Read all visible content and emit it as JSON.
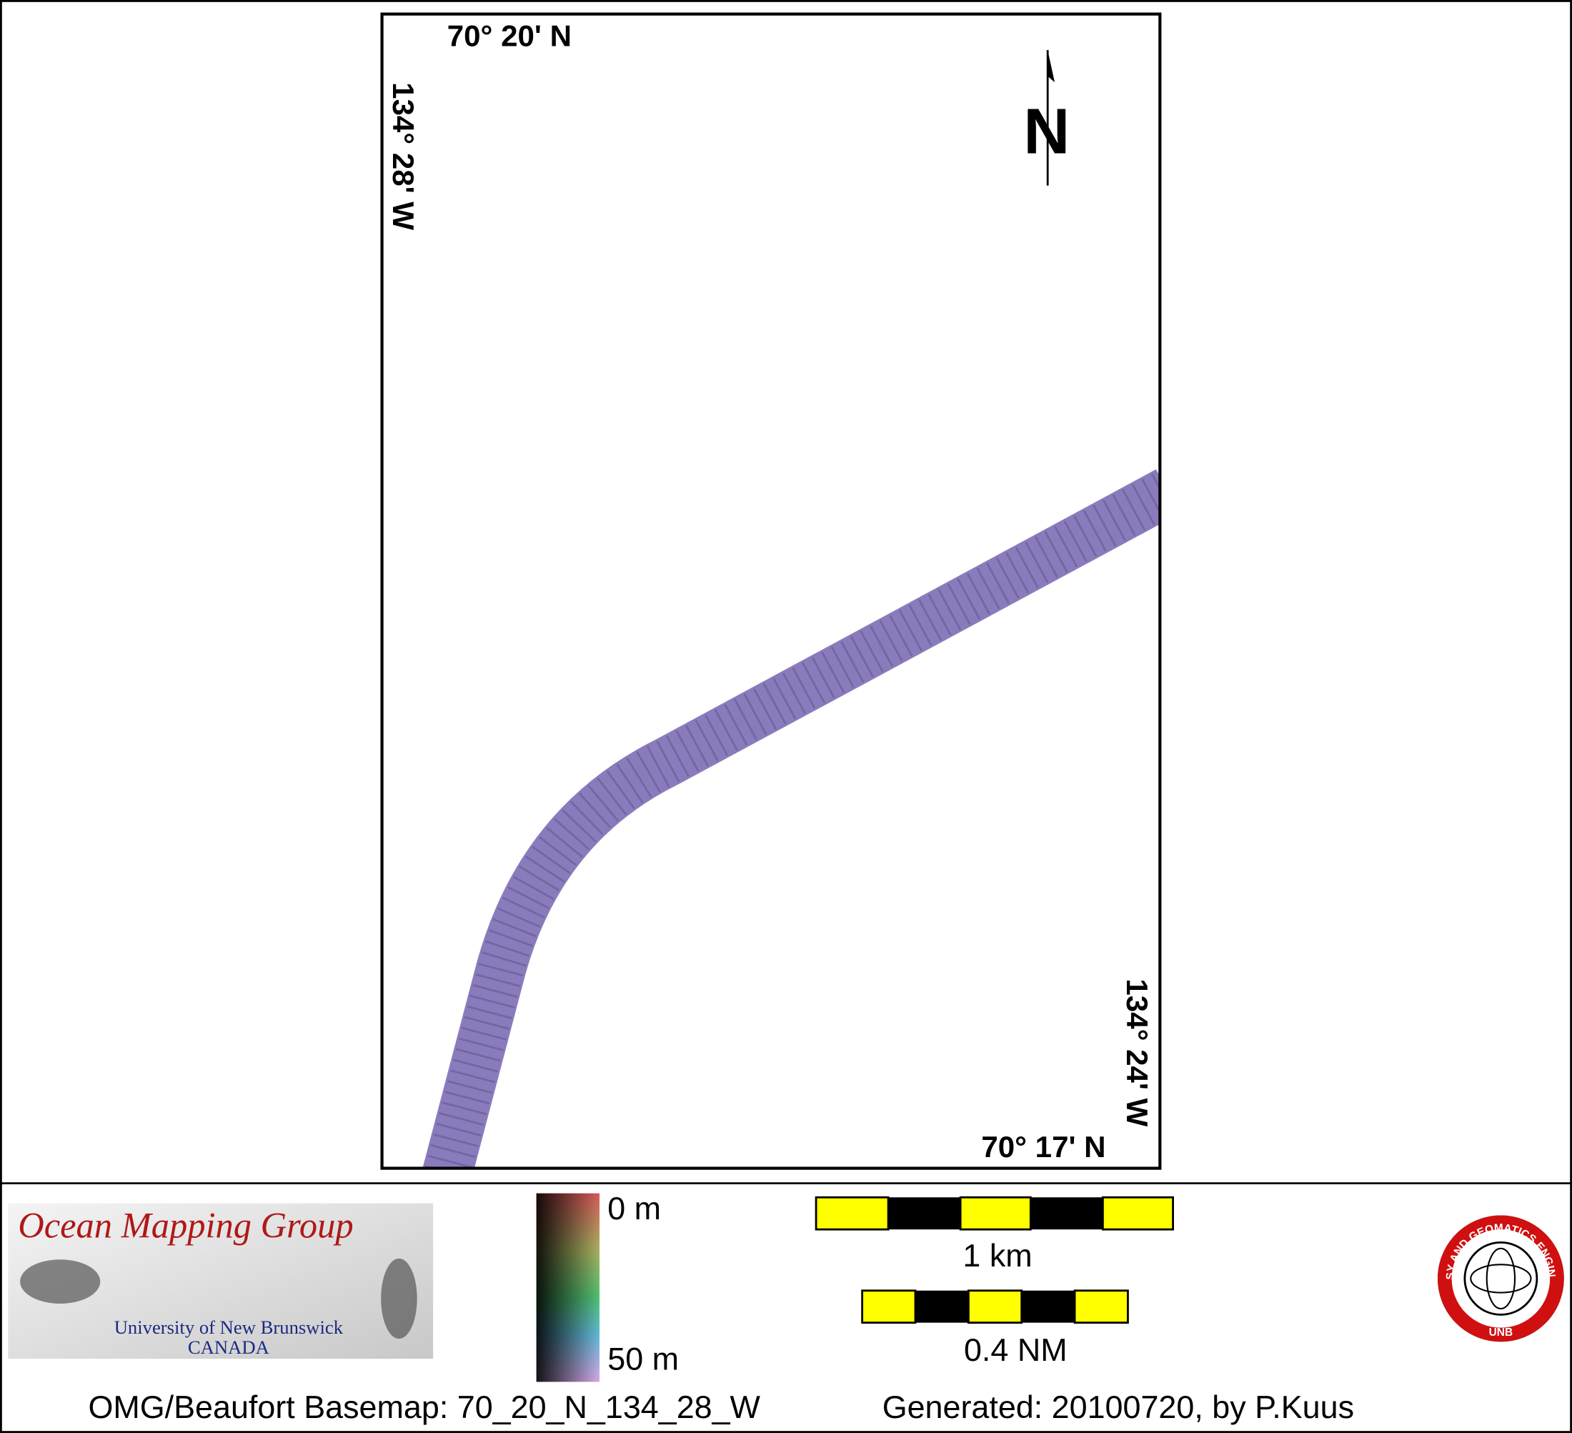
{
  "map": {
    "labels": {
      "top_lat": "70° 20' N",
      "left_lon": "134° 28' W",
      "bottom_lat": "70° 17' N",
      "right_lon": "134° 24' W"
    },
    "north_arrow": "N"
  },
  "legend": {
    "logo": {
      "title": "Ocean Mapping Group",
      "line1": "University of New Brunswick",
      "line2": "CANADA"
    },
    "depth_scale": {
      "top": "0 m",
      "bottom": "50 m"
    },
    "scale_bars": {
      "km": "1 km",
      "nm": "0.4 NM"
    },
    "unb_logo": {
      "ring": "GEODESY AND GEOMATICS ENGINEERING",
      "bottom": "UNB"
    }
  },
  "footer": {
    "basemap": "OMG/Beaufort Basemap: 70_20_N_134_28_W",
    "generated": "Generated: 20100720, by P.Kuus"
  }
}
